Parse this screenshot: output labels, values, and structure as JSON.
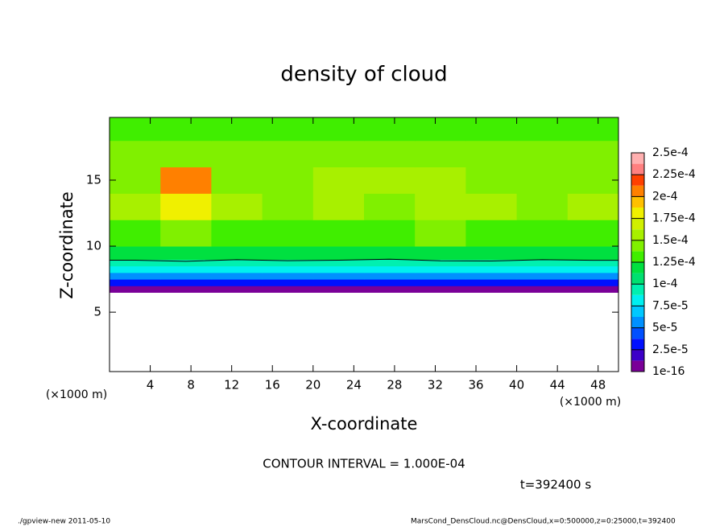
{
  "chart_data": {
    "type": "heatmap",
    "title": "density of cloud",
    "xlabel": "X-coordinate",
    "ylabel": "Z-coordinate",
    "x_unit_label": "(×1000 m)",
    "contour_text": "CONTOUR INTERVAL = 1.000E-04",
    "time_text": "t=392400 s",
    "footer_left": "./gpview-new  2011-05-10",
    "footer_right": "MarsCond_DensCloud.nc@DensCloud,x=0:500000,z=0:25000,t=392400",
    "xlim": [
      0,
      50
    ],
    "ylim": [
      0.5,
      19.75
    ],
    "xticks": [
      4,
      8,
      12,
      16,
      20,
      24,
      28,
      32,
      36,
      40,
      44,
      48
    ],
    "yticks": [
      5,
      10,
      15
    ],
    "x_edges": [
      0,
      5,
      10,
      15,
      20,
      25,
      30,
      35,
      40,
      45,
      50
    ],
    "z_edges": [
      6.5,
      7,
      7.5,
      8,
      8.5,
      9,
      10,
      12,
      14,
      16,
      18,
      19.75
    ],
    "values": [
      [
        1e-05,
        1.2e-05,
        1e-05,
        1e-05,
        1.1e-05,
        1e-05,
        1.2e-05,
        1e-05,
        1e-05,
        1.1e-05
      ],
      [
        3e-05,
        2.8e-05,
        3e-05,
        3.2e-05,
        3e-05,
        2.8e-05,
        3e-05,
        3.1e-05,
        3e-05,
        2.9e-05
      ],
      [
        5.5e-05,
        5.2e-05,
        5.6e-05,
        5.5e-05,
        5.4e-05,
        5.7e-05,
        5.3e-05,
        5.5e-05,
        5.6e-05,
        5.4e-05
      ],
      [
        8e-05,
        7.8e-05,
        8.2e-05,
        8e-05,
        7.9e-05,
        8.1e-05,
        8e-05,
        7.8e-05,
        8.2e-05,
        8e-05
      ],
      [
        9.5e-05,
        9.7e-05,
        9.4e-05,
        9.6e-05,
        9.5e-05,
        9.3e-05,
        9.6e-05,
        9.7e-05,
        9.4e-05,
        9.5e-05
      ],
      [
        0.000115,
        0.000118,
        0.000114,
        0.000116,
        0.000115,
        0.000113,
        0.000117,
        0.000115,
        0.000114,
        0.000116
      ],
      [
        0.000135,
        0.00014,
        0.000136,
        0.000134,
        0.000137,
        0.000135,
        0.000138,
        0.000134,
        0.000136,
        0.000135
      ],
      [
        0.00015,
        0.00018,
        0.00015,
        0.000148,
        0.000152,
        0.000149,
        0.000151,
        0.00015,
        0.000148,
        0.00015
      ],
      [
        0.000148,
        0.0002,
        0.000147,
        0.000146,
        0.00015,
        0.000152,
        0.00015,
        0.000147,
        0.000149,
        0.000148
      ],
      [
        0.00014,
        0.000145,
        0.00014,
        0.000139,
        0.000141,
        0.00014,
        0.000142,
        0.00014,
        0.000141,
        0.00014
      ],
      [
        0.00013,
        0.000132,
        0.00013,
        0.000129,
        0.000131,
        0.00013,
        0.000132,
        0.00013,
        0.000131,
        0.00013
      ]
    ],
    "contour_level": 0.0001,
    "levels": [
      1e-16,
      1.25e-05,
      2.5e-05,
      3.75e-05,
      5e-05,
      6.25e-05,
      7.5e-05,
      8.75e-05,
      0.0001,
      0.0001125,
      0.000125,
      0.0001375,
      0.00015,
      0.0001625,
      0.000175,
      0.0001875,
      0.0002,
      0.0002125,
      0.000225,
      0.0002375,
      0.00025
    ],
    "colors": [
      "#7a0098",
      "#3c00c8",
      "#0010ff",
      "#0050ff",
      "#0090ff",
      "#00c8ff",
      "#00f0f0",
      "#00f0b0",
      "#00e070",
      "#00e040",
      "#40ee00",
      "#80f000",
      "#a8f000",
      "#d0f000",
      "#f0f000",
      "#ffc000",
      "#ff8000",
      "#ff4000",
      "#ff8080",
      "#ffb0b0"
    ],
    "colorbar_ticks": [
      {
        "value": 1e-16,
        "label": "1e-16"
      },
      {
        "value": 2.5e-05,
        "label": "2.5e-5"
      },
      {
        "value": 5e-05,
        "label": "5e-5"
      },
      {
        "value": 7.5e-05,
        "label": "7.5e-5"
      },
      {
        "value": 0.0001,
        "label": "1e-4"
      },
      {
        "value": 0.000125,
        "label": "1.25e-4"
      },
      {
        "value": 0.00015,
        "label": "1.5e-4"
      },
      {
        "value": 0.000175,
        "label": "1.75e-4"
      },
      {
        "value": 0.0002,
        "label": "2e-4"
      },
      {
        "value": 0.000225,
        "label": "2.25e-4"
      },
      {
        "value": 0.00025,
        "label": "2.5e-4"
      }
    ]
  }
}
